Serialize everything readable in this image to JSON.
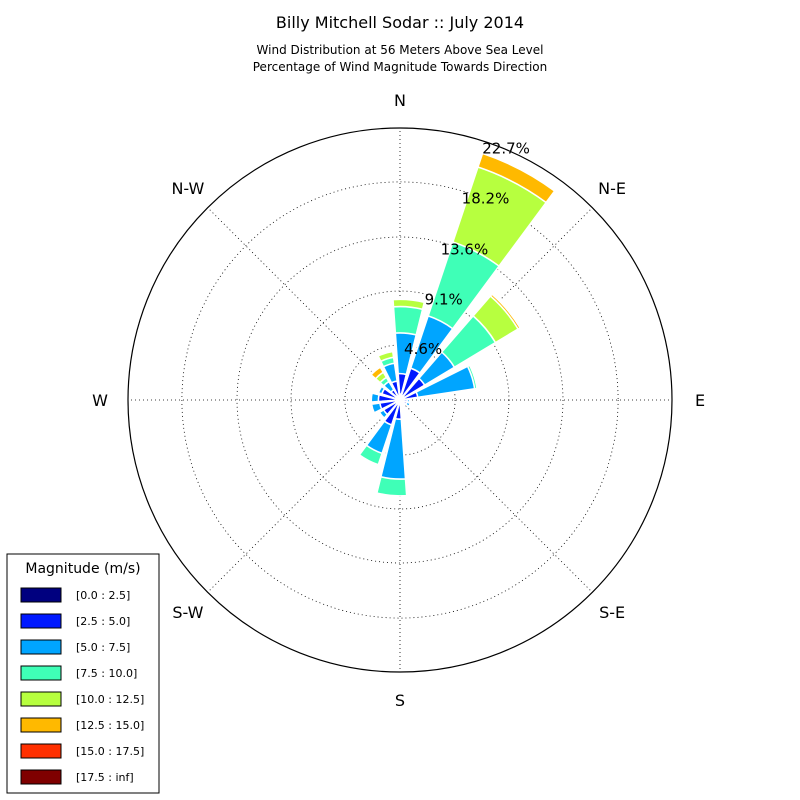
{
  "chart_data": {
    "type": "windrose",
    "title": "Billy Mitchell Sodar :: July 2014",
    "subtitle_lines": [
      "Wind Distribution at 56 Meters Above Sea Level",
      "Percentage of Wind Magnitude Towards Direction"
    ],
    "direction_labels": [
      "N",
      "N-E",
      "E",
      "S-E",
      "S",
      "S-W",
      "W",
      "N-W"
    ],
    "radial_ticks": [
      "4.6%",
      "9.1%",
      "13.6%",
      "18.2%",
      "22.7%"
    ],
    "radial_values": [
      4.6,
      9.1,
      13.6,
      18.2,
      22.7
    ],
    "rmax": 22.7,
    "grid": true,
    "legend": {
      "title": "Magnitude (m/s)",
      "placement": "bottom-left",
      "bins": [
        "[0.0 : 2.5]",
        "[2.5 : 5.0]",
        "[5.0 : 7.5]",
        "[7.5 : 10.0]",
        "[10.0 : 12.5]",
        "[12.5 : 15.0]",
        "[15.0 : 17.5]",
        "[17.5 : inf]"
      ],
      "colors": [
        "#00007f",
        "#0019ff",
        "#00a5ff",
        "#3fffb7",
        "#b7ff3f",
        "#ffb900",
        "#ff3000",
        "#7f0000"
      ]
    },
    "sector_angles_deg": [
      5,
      27.5,
      50,
      72.5,
      95,
      117.5,
      140,
      162.5,
      185,
      207.5,
      230,
      252.5,
      275,
      297.5,
      320,
      342.5
    ],
    "sector_width_deg": 18,
    "cumulative_percent": [
      [
        0.5,
        2.2,
        5.6,
        7.8,
        8.4,
        8.4,
        8.4,
        8.4
      ],
      [
        0.4,
        2.8,
        7.4,
        13.9,
        20.5,
        21.7,
        21.7,
        21.7
      ],
      [
        0.4,
        2.4,
        5.3,
        9.3,
        11.5,
        11.7,
        11.8,
        11.9
      ],
      [
        0.3,
        1.5,
        6.3,
        6.5,
        6.6,
        6.6,
        6.6,
        6.6
      ],
      [
        0.2,
        0.6,
        0.8,
        0.8,
        0.8,
        0.8,
        0.8,
        0.8
      ],
      [
        0.2,
        0.6,
        0.9,
        0.9,
        0.9,
        0.9,
        0.9,
        0.9
      ],
      [
        0.1,
        0.3,
        0.5,
        0.5,
        0.5,
        0.5,
        0.5,
        0.5
      ],
      [
        0.2,
        0.4,
        0.5,
        0.5,
        0.5,
        0.5,
        0.5,
        0.5
      ],
      [
        0.3,
        1.6,
        6.6,
        8.0,
        8.0,
        8.0,
        8.0,
        8.0
      ],
      [
        0.3,
        2.2,
        4.7,
        5.7,
        5.7,
        5.7,
        5.7,
        5.7
      ],
      [
        0.2,
        1.6,
        2.0,
        2.1,
        2.1,
        2.1,
        2.1,
        2.1
      ],
      [
        0.2,
        1.7,
        2.4,
        2.4,
        2.4,
        2.4,
        2.4,
        2.4
      ],
      [
        0.2,
        1.8,
        2.4,
        2.4,
        2.4,
        2.4,
        2.4,
        2.4
      ],
      [
        0.2,
        1.6,
        1.9,
        1.9,
        1.9,
        1.9,
        1.9,
        1.9
      ],
      [
        0.2,
        1.0,
        1.8,
        2.2,
        2.7,
        3.2,
        3.3,
        3.3
      ],
      [
        0.2,
        1.6,
        3.1,
        3.6,
        4.1,
        4.1,
        4.1,
        4.1
      ]
    ]
  }
}
